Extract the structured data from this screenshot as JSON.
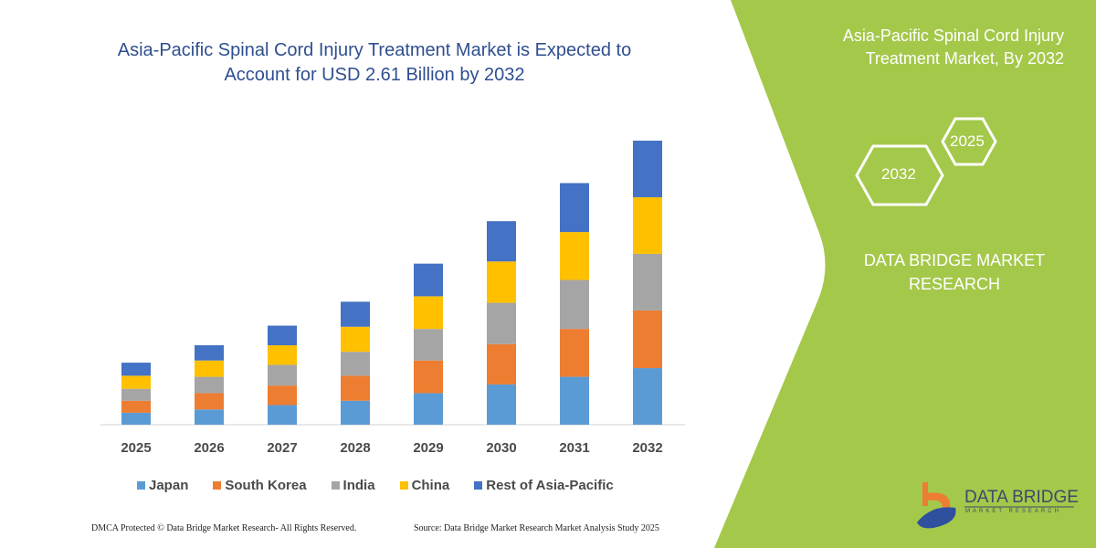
{
  "chart_data": {
    "type": "bar",
    "stacked": true,
    "title": "Asia-Pacific Spinal Cord Injury Treatment Market is Expected to Account for USD 2.61 Billion by 2032",
    "xlabel": "",
    "ylabel": "",
    "unit": "USD Billion",
    "ylim": [
      0,
      2.61
    ],
    "grid": false,
    "legend_position": "bottom",
    "categories": [
      "2025",
      "2026",
      "2027",
      "2028",
      "2029",
      "2030",
      "2031",
      "2032"
    ],
    "series": [
      {
        "name": "Japan",
        "color": "#5b9bd5",
        "values": [
          0.11,
          0.14,
          0.18,
          0.22,
          0.29,
          0.37,
          0.44,
          0.52
        ]
      },
      {
        "name": "South Korea",
        "color": "#ed7d31",
        "values": [
          0.11,
          0.15,
          0.18,
          0.23,
          0.3,
          0.37,
          0.44,
          0.53
        ]
      },
      {
        "name": "India",
        "color": "#a5a5a5",
        "values": [
          0.11,
          0.15,
          0.19,
          0.22,
          0.29,
          0.38,
          0.45,
          0.52
        ]
      },
      {
        "name": "China",
        "color": "#ffc000",
        "values": [
          0.12,
          0.15,
          0.18,
          0.23,
          0.3,
          0.38,
          0.44,
          0.52
        ]
      },
      {
        "name": "Rest of Asia-Pacific",
        "color": "#4472c4",
        "values": [
          0.12,
          0.14,
          0.18,
          0.23,
          0.3,
          0.37,
          0.45,
          0.52
        ]
      }
    ]
  },
  "header": {
    "title_line1": "Asia-Pacific Spinal Cord Injury Treatment Market is Expected to",
    "title_line2": "Account for USD 2.61 Billion by 2032"
  },
  "side_panel": {
    "title_line1": "Asia-Pacific Spinal Cord Injury",
    "title_line2": "Treatment Market, By 2032",
    "hex_end_year": "2032",
    "hex_start_year": "2025",
    "brand_line1": "DATA BRIDGE MARKET",
    "brand_line2": "RESEARCH",
    "logo_text": "DATA BRIDGE",
    "logo_subtext": "MARKET RESEARCH",
    "accent_color": "#a4c84a"
  },
  "footer": {
    "copyright": "DMCA Protected © Data Bridge Market Research-  All Rights Reserved.",
    "source": "Source: Data Bridge Market Research  Market Analysis Study 2025"
  }
}
